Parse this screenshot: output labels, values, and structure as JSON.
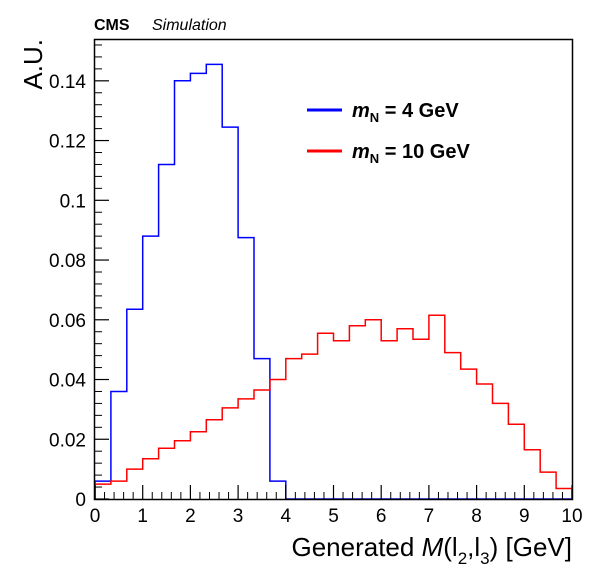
{
  "header": {
    "experiment": "CMS",
    "status": "Simulation"
  },
  "chart_data": {
    "type": "histogram",
    "xlabel": {
      "prefix": "Generated ",
      "var": "M",
      "open": "(l",
      "sub1": "2",
      "comma": ",l",
      "sub2": "3",
      "close": ")",
      "unit": " [GeV]"
    },
    "ylabel": "A.U.",
    "xlim": [
      0,
      10
    ],
    "ylim": [
      0,
      0.154
    ],
    "grid": false,
    "legend_position": "top-right",
    "x_ticks": [
      0,
      1,
      2,
      3,
      4,
      5,
      6,
      7,
      8,
      9,
      10
    ],
    "x_tick_labels": [
      "0",
      "1",
      "2",
      "3",
      "4",
      "5",
      "6",
      "7",
      "8",
      "9",
      "10"
    ],
    "y_ticks": [
      0,
      0.02,
      0.04,
      0.06,
      0.08,
      0.1,
      0.12,
      0.14
    ],
    "y_tick_labels": [
      "0",
      "0.02",
      "0.04",
      "0.06",
      "0.08",
      "0.1",
      "0.12",
      "0.14"
    ],
    "bin_edges": [
      0,
      0.333,
      0.667,
      1.0,
      1.333,
      1.667,
      2.0,
      2.333,
      2.667,
      3.0,
      3.333,
      3.667,
      4.0,
      4.333,
      4.667,
      5.0,
      5.333,
      5.667,
      6.0,
      6.333,
      6.667,
      7.0,
      7.333,
      7.667,
      8.0,
      8.333,
      8.667,
      9.0,
      9.333,
      9.667,
      10.0
    ],
    "series": [
      {
        "legend_var": "m",
        "legend_sub": "N",
        "legend_value": " = 4 GeV",
        "color": "#0000ff",
        "values": [
          0.006,
          0.036,
          0.0635,
          0.088,
          0.112,
          0.14,
          0.1425,
          0.1455,
          0.1245,
          0.0875,
          0.047,
          0.006,
          0,
          0,
          0,
          0,
          0,
          0,
          0,
          0,
          0,
          0,
          0,
          0,
          0,
          0,
          0,
          0,
          0,
          0
        ]
      },
      {
        "legend_var": "m",
        "legend_sub": "N",
        "legend_value": " = 10 GeV",
        "color": "#ff0000",
        "values": [
          0.005,
          0.006,
          0.01,
          0.0135,
          0.017,
          0.0195,
          0.0225,
          0.0265,
          0.0305,
          0.0335,
          0.0365,
          0.04,
          0.047,
          0.0485,
          0.0555,
          0.053,
          0.058,
          0.06,
          0.053,
          0.057,
          0.0535,
          0.0615,
          0.049,
          0.0435,
          0.0385,
          0.032,
          0.025,
          0.0165,
          0.009,
          0.0035
        ]
      }
    ]
  }
}
